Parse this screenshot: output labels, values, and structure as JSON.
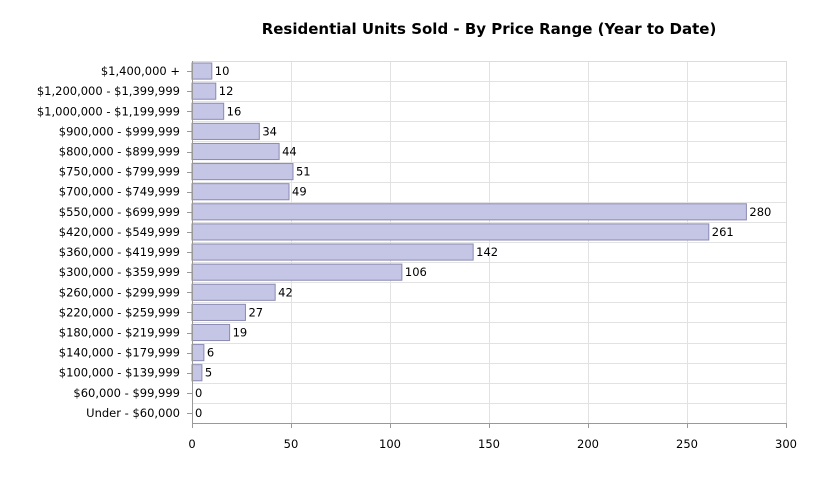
{
  "chart_data": {
    "type": "bar",
    "orientation": "horizontal",
    "title": "Residential Units Sold - By Price Range (Year to Date)",
    "xlabel": "",
    "ylabel": "",
    "xlim": [
      0,
      300
    ],
    "x_ticks": [
      0,
      50,
      100,
      150,
      200,
      250,
      300
    ],
    "grid": true,
    "legend": "none",
    "bar_color": "#c5c5e6",
    "bar_border_color": "#8a8ab3",
    "categories": [
      "$1,400,000 +",
      "$1,200,000 - $1,399,999",
      "$1,000,000 - $1,199,999",
      "$900,000 - $999,999",
      "$800,000 - $899,999",
      "$750,000 - $799,999",
      "$700,000 - $749,999",
      "$550,000 - $699,999",
      "$420,000 - $549,999",
      "$360,000 - $419,999",
      "$300,000 - $359,999",
      "$260,000 - $299,999",
      "$220,000 - $259,999",
      "$180,000 - $219,999",
      "$140,000 - $179,999",
      "$100,000 - $139,999",
      "$60,000 - $99,999",
      "Under - $60,000"
    ],
    "values": [
      10,
      12,
      16,
      34,
      44,
      51,
      49,
      280,
      261,
      142,
      106,
      42,
      27,
      19,
      6,
      5,
      0,
      0
    ]
  }
}
